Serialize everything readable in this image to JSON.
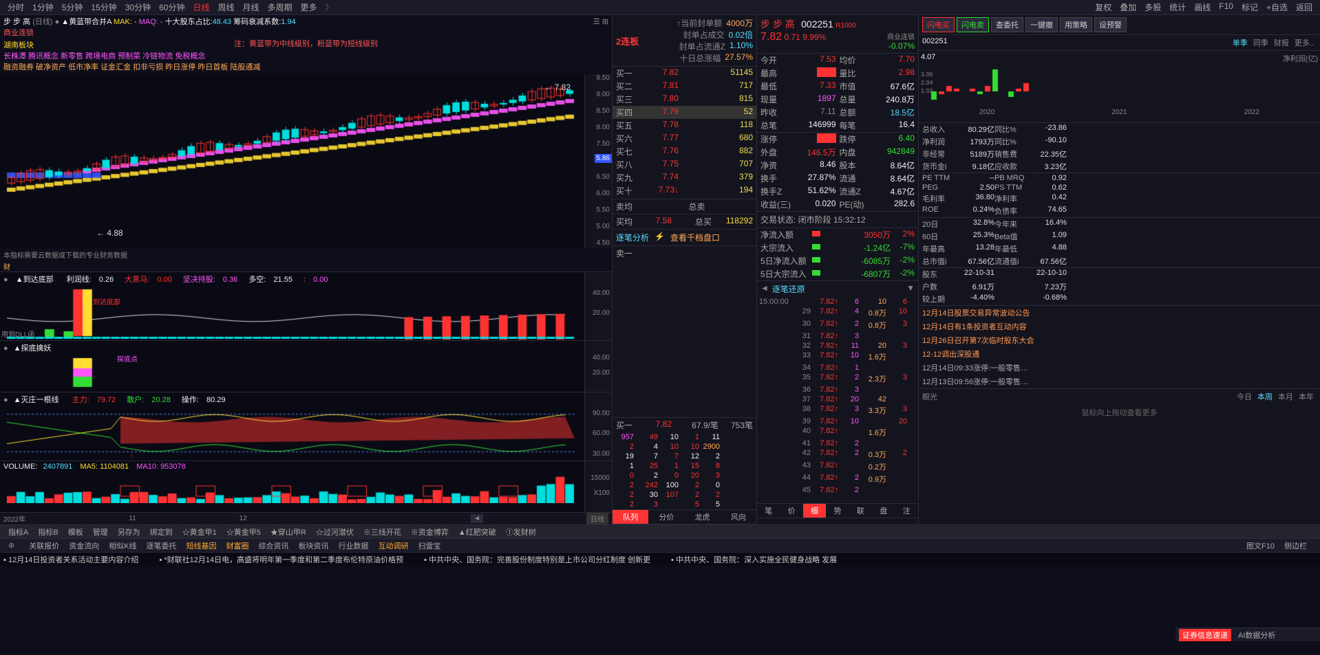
{
  "topbar": {
    "periods": [
      "分时",
      "1分钟",
      "5分钟",
      "15分钟",
      "30分钟",
      "60分钟",
      "日线",
      "周线",
      "月线",
      "多周期",
      "更多"
    ],
    "active_period": "日线",
    "right": [
      "复权",
      "叠加",
      "多股",
      "统计",
      "画线",
      "F10",
      "标记",
      "+自选",
      "返回"
    ]
  },
  "chart_header": {
    "name": "步 步 高",
    "period": "(日线)",
    "indicator": "黄蓝带合并A",
    "mak": "MAK: -",
    "maq": "MAQ: -",
    "top10": "十大股东占比:",
    "top10_val": "48.43",
    "chip": "筹码衰减系数:",
    "chip_val": "1.94",
    "note": "注：黄蓝带为中线级别，粉蓝带为短线级别",
    "tags1": "商业连锁",
    "tags2": "湖南板块",
    "tags3": "长株潭 腾讯概念 新零售 跨境电商 预制菜 冷链物流 免税概念",
    "tags4": "融资融券 破净资产 低市净率 证金汇金 扣非亏损 昨日涨停 昨日首板 陆股通减",
    "price_high": "7.82",
    "price_low": "4.88",
    "price_curr": "5.86"
  },
  "y_axis_main": [
    "9.50",
    "9.00",
    "8.50",
    "8.00",
    "7.50",
    "7.00",
    "6.50",
    "6.00",
    "5.50",
    "5.00",
    "4.50"
  ],
  "sub1": {
    "title": "到达底部",
    "items": [
      {
        "l": "利润线:",
        "v": "0.26",
        "c": "white"
      },
      {
        "l": "大黑马:",
        "v": "0.00",
        "c": "red"
      },
      {
        "l": "坚决持股:",
        "v": "0.36",
        "c": "magenta"
      },
      {
        "l": "多空:",
        "v": "21.55",
        "c": "white"
      },
      {
        "l": ":",
        "v": "0.00",
        "c": "magenta"
      }
    ],
    "y": [
      "40.00",
      "20.00"
    ],
    "note": "本指标需要云数据或下载的专业财务数据",
    "bottom_note": "到达底部",
    "dll": "用到DLL函"
  },
  "sub2": {
    "title": "探底擒妖",
    "note": "探底点",
    "y": [
      "40.00",
      "20.00"
    ]
  },
  "sub3": {
    "title": "灭庄一根线",
    "items": [
      {
        "l": "主力:",
        "v": "79.72",
        "c": "red"
      },
      {
        "l": "散户:",
        "v": "20.28",
        "c": "green"
      },
      {
        "l": "操作:",
        "v": "80.29",
        "c": "white"
      }
    ],
    "y": [
      "90.00",
      "60.00",
      "30.00"
    ]
  },
  "sub4": {
    "title": "VOLUME:",
    "vol": "2407891",
    "ma5": "MA5: 1104081",
    "ma10": "MA10: 953078",
    "y": [
      "15000",
      "X100"
    ],
    "time_labels": [
      "2022年",
      "11",
      "12"
    ],
    "btn": "日线"
  },
  "orderbook": {
    "header_red": "2连板",
    "header_rows": [
      {
        "l": "↑当前封单额",
        "v": "4000万",
        "c": "orange"
      },
      {
        "l": "封单占成交",
        "v": "0.02倍",
        "c": "cyan"
      },
      {
        "l": "封单占流通Z",
        "v": "1.10%",
        "c": "cyan"
      },
      {
        "l": "十日总涨幅",
        "v": "27.57%",
        "c": "orange"
      }
    ],
    "buy_rows": [
      {
        "n": "买一",
        "p": "7.82",
        "q": "51145"
      },
      {
        "n": "买二",
        "p": "7.81",
        "q": "717"
      },
      {
        "n": "买三",
        "p": "7.80",
        "q": "815"
      },
      {
        "n": "买四",
        "p": "7.79",
        "q": "52",
        "sel": true
      },
      {
        "n": "买五",
        "p": "7.78",
        "q": "118"
      },
      {
        "n": "买六",
        "p": "7.77",
        "q": "680"
      },
      {
        "n": "买七",
        "p": "7.76",
        "q": "882"
      },
      {
        "n": "买八",
        "p": "7.75",
        "q": "707"
      },
      {
        "n": "买九",
        "p": "7.74",
        "q": "379"
      },
      {
        "n": "买十",
        "p": "7.73",
        "q": "194",
        "flag": "↓"
      }
    ],
    "avg": {
      "sell_l": "卖均",
      "buy_l": "买均",
      "buy_p": "7.58",
      "total_sell": "总卖",
      "total_buy": "总买",
      "total_buy_v": "118292"
    },
    "tick_title": "逐笔分析",
    "tick_sub": "查看千档盘口",
    "sell1": "卖一",
    "buy1_row": {
      "n": "买一",
      "p": "7.82",
      "avg": "67.9/笔",
      "cnt": "753笔"
    },
    "tick_grid": [
      [
        "957",
        "49",
        "10",
        "1",
        "11"
      ],
      [
        "2",
        "4",
        "10",
        "10",
        "2900"
      ],
      [
        "19",
        "7",
        "7",
        "12",
        "2"
      ],
      [
        "1",
        "25",
        "1",
        "15",
        "8"
      ],
      [
        "0",
        "2",
        "0",
        "20",
        "3"
      ],
      [
        "2",
        "242",
        "100",
        "2",
        "0"
      ],
      [
        "2",
        "30",
        "107",
        "2",
        "2"
      ],
      [
        "2",
        "3",
        "",
        "5",
        "5"
      ]
    ],
    "bottom_tabs": [
      "队列",
      "分价",
      "龙虎",
      "风向"
    ]
  },
  "quote": {
    "name": "步 步 高",
    "code": "002251",
    "flag": "R1000",
    "sector": "商业连锁",
    "sector_chg": "-0.07%",
    "price": "7.82",
    "chg": "0.71",
    "pct": "9.99%",
    "rows": [
      {
        "k1": "今开",
        "v1": "7.53",
        "c1": "red",
        "k2": "均价",
        "v2": "7.70",
        "c2": "red"
      },
      {
        "k1": "最高",
        "v1": "7.82",
        "c1": "red",
        "k2": "量比",
        "v2": "2.98",
        "c2": "red",
        "box1": true
      },
      {
        "k1": "最低",
        "v1": "7.33",
        "c1": "red",
        "k2": "市值",
        "v2": "67.6亿",
        "c2": "white"
      },
      {
        "k1": "现量",
        "v1": "1897",
        "c1": "magenta",
        "k2": "总量",
        "v2": "240.8万",
        "c2": "white"
      },
      {
        "k1": "昨收",
        "v1": "7.11",
        "c1": "gray",
        "k2": "总额",
        "v2": "18.5亿",
        "c2": "cyan"
      },
      {
        "k1": "总笔",
        "v1": "146999",
        "c1": "white",
        "k2": "每笔",
        "v2": "16.4",
        "c2": "white"
      }
    ],
    "rows2": [
      {
        "k1": "涨停",
        "v1": "7.82",
        "c1": "red",
        "k2": "跌停",
        "v2": "6.40",
        "c2": "green",
        "box1": true
      },
      {
        "k1": "外盘",
        "v1": "146.5万",
        "c1": "red",
        "k2": "内盘",
        "v2": "942849",
        "c2": "green"
      },
      {
        "k1": "净资",
        "v1": "8.46",
        "c1": "white",
        "k2": "股本",
        "v2": "8.64亿",
        "c2": "white"
      },
      {
        "k1": "换手",
        "v1": "27.87%",
        "c1": "white",
        "k2": "流通",
        "v2": "8.64亿",
        "c2": "white"
      },
      {
        "k1": "换手Z",
        "v1": "51.62%",
        "c1": "white",
        "k2": "流通Z",
        "v2": "4.67亿",
        "c2": "white"
      },
      {
        "k1": "收益(三)",
        "v1": "0.020",
        "c1": "white",
        "k2": "PE(动)",
        "v2": "282.6",
        "c2": "white"
      }
    ],
    "status": "交易状态: 闭市阶段 15:32:12",
    "flow": [
      {
        "k": "净流入额",
        "bar": "red",
        "v": "3050万",
        "p": "2%"
      },
      {
        "k": "大宗流入",
        "bar": "green",
        "v": "-1.24亿",
        "p": "-7%",
        "vc": "green"
      },
      {
        "k": "5日净流入额",
        "bar": "green",
        "v": "-6085万",
        "p": "-2%",
        "vc": "green"
      },
      {
        "k": "5日大宗流入",
        "bar": "green",
        "v": "-6807万",
        "p": "-2%",
        "vc": "green"
      }
    ],
    "tick_replay": "逐笔还原",
    "tick_rows": [
      {
        "t": "15:00:00",
        "p": "7.82",
        "q": "6",
        "e": "10",
        "a": "6"
      },
      {
        "t": "",
        "s": "29",
        "p": "7.82",
        "q": "4",
        "e": "0.8万",
        "a": "10"
      },
      {
        "t": "",
        "s": "30",
        "p": "7.82",
        "q": "2",
        "e": "0.8万",
        "a": "3"
      },
      {
        "t": "",
        "s": "31",
        "p": "7.82",
        "q": "3",
        "e": "",
        "a": ""
      },
      {
        "t": "",
        "s": "32",
        "p": "7.82",
        "q": "11",
        "e": "20",
        "a": "3"
      },
      {
        "t": "",
        "s": "33",
        "p": "7.82",
        "q": "10",
        "e": "1.6万",
        "a": ""
      },
      {
        "t": "",
        "s": "34",
        "p": "7.82",
        "q": "1",
        "e": "",
        "a": ""
      },
      {
        "t": "",
        "s": "35",
        "p": "7.82",
        "q": "2",
        "e": "2.3万",
        "a": "3"
      },
      {
        "t": "",
        "s": "36",
        "p": "7.82",
        "q": "3",
        "e": "",
        "a": ""
      },
      {
        "t": "",
        "s": "37",
        "p": "7.82",
        "q": "20",
        "e": "42",
        "a": ""
      },
      {
        "t": "",
        "s": "38",
        "p": "7.82",
        "q": "3",
        "e": "3.3万",
        "a": "3"
      },
      {
        "t": "",
        "s": "39",
        "p": "7.82",
        "q": "10",
        "e": "",
        "a": "20"
      },
      {
        "t": "",
        "s": "40",
        "p": "7.82",
        "q": "",
        "e": "1.6万",
        "a": ""
      },
      {
        "t": "",
        "s": "41",
        "p": "7.82",
        "q": "2",
        "e": "",
        "a": ""
      },
      {
        "t": "",
        "s": "42",
        "p": "7.82",
        "q": "2",
        "e": "0.3万",
        "a": "2"
      },
      {
        "t": "",
        "s": "43",
        "p": "7.82",
        "q": "",
        "e": "0.2万",
        "a": ""
      },
      {
        "t": "",
        "s": "44",
        "p": "7.82",
        "q": "2",
        "e": "0.9万",
        "a": ""
      },
      {
        "t": "",
        "s": "45",
        "p": "7.82",
        "q": "2",
        "e": "",
        "a": ""
      }
    ],
    "tick_tabs": [
      "笔",
      "价",
      "细",
      "势",
      "联",
      "盘",
      "注"
    ]
  },
  "side": {
    "btns": [
      {
        "t": "闪电买",
        "c": "red"
      },
      {
        "t": "闪电卖",
        "c": "green"
      },
      {
        "t": "查委托",
        "c": ""
      },
      {
        "t": "一键撤",
        "c": ""
      },
      {
        "t": "用策略",
        "c": ""
      },
      {
        "t": "设预警",
        "c": ""
      }
    ],
    "code": "002251",
    "tabs": [
      "单季",
      "同季",
      "财报",
      "更多.."
    ],
    "mini_title": "净利润(亿)",
    "mini_val": "4.07",
    "mini_years": [
      "2020",
      "2021",
      "2022"
    ],
    "mini_bars": [
      {
        "y": "2020",
        "vals": [
          -0.3,
          -0.1,
          0.2,
          0.1
        ],
        "colors": [
          "#33dd33",
          "#ff3333",
          "#ff3333",
          "#ff3333"
        ]
      },
      {
        "y": "2021",
        "vals": [
          0.1,
          -0.1,
          0.2,
          0.8
        ],
        "colors": [
          "#ff3333",
          "#33dd33",
          "#ff3333",
          "#33dd33"
        ]
      },
      {
        "y": "2022",
        "vals": [
          -0.2,
          0.1,
          0.3
        ],
        "colors": [
          "#33dd33",
          "#ff3333",
          "#ff3333"
        ]
      }
    ],
    "fin": [
      {
        "k1": "总收入",
        "v1": "80.29亿",
        "k2": "同比%",
        "v2": "-23.86",
        "c2": "green"
      },
      {
        "k1": "净利润",
        "v1": "1793万",
        "k2": "同比%",
        "v2": "-90.10",
        "c2": "green"
      },
      {
        "k1": "非经常",
        "v1": "5189万",
        "k2": "销售费",
        "v2": "22.35亿"
      },
      {
        "k1": "货币金i",
        "v1": "9.18亿",
        "k2": "应收款",
        "v2": "3.23亿"
      }
    ],
    "fin2": [
      {
        "k1": "PE TTM",
        "v1": "--",
        "k2": "PB MRQ",
        "v2": "0.92"
      },
      {
        "k1": "PEG",
        "v1": "2.50",
        "k2": "PS TTM",
        "v2": "0.62"
      },
      {
        "k1": "毛利率",
        "v1": "36.80",
        "k2": "净利率",
        "v2": "0.42"
      },
      {
        "k1": "ROE",
        "v1": "0.24%",
        "k2": "负债率",
        "v2": "74.65"
      }
    ],
    "fin3": [
      {
        "k1": "20日",
        "v1": "32.8%",
        "c1": "red",
        "k2": "今年来",
        "v2": "16.4%",
        "c2": "red"
      },
      {
        "k1": "60日",
        "v1": "25.3%",
        "c1": "red",
        "k2": "Beta值",
        "v2": "1.09"
      },
      {
        "k1": "年最高",
        "v1": "13.28",
        "k2": "年最低",
        "v2": "4.88"
      },
      {
        "k1": "总市值i",
        "v1": "67.56亿",
        "k2": "流通值i",
        "v2": "67.56亿"
      }
    ],
    "fin4": [
      {
        "k1": "股东",
        "v1": "22-10-31",
        "k2": "",
        "v2": "22-10-10"
      },
      {
        "k1": "户数",
        "v1": "6.91万",
        "k2": "",
        "v2": "7.23万"
      },
      {
        "k1": "较上期",
        "v1": "-4.40%",
        "c1": "green",
        "k2": "",
        "v2": "-0.68%",
        "c2": "green"
      }
    ],
    "news": [
      "12月14日股票交易异常波动公告",
      "12月14日有1条投资者互动内容",
      "12月26日召开第7次临时股东大会",
      "12-12调出深股通",
      "12月14日09:33涨停:一般零售…",
      "12月13日09:56涨停:一般零售…"
    ],
    "eye": "眼光",
    "eye_tabs": [
      "今日",
      "本周",
      "本月",
      "本年"
    ],
    "drag_hint": "鼠标向上拖动查看更多"
  },
  "bottom1": {
    "items": [
      "指标A",
      "指标B",
      "模板",
      "管理",
      "另存为",
      "绑定到",
      "☆黄金甲1",
      "☆黄金甲5",
      "★穿山甲R",
      "☆过河潜伏",
      "※三线开花",
      "※资金博弈",
      "▲红肥突破",
      "①发财树"
    ]
  },
  "bottom2": {
    "items": [
      "关联报价",
      "资金流向",
      "相似K线",
      "逐笔委托",
      "短线基因",
      "财富圈",
      "综合资讯",
      "板块资讯",
      "行业数据",
      "互动调研",
      "扫雷宝"
    ],
    "highlight": [
      "短线基因",
      "财富圈",
      "互动调研"
    ],
    "right": [
      "图文F10",
      "侧边栏"
    ]
  },
  "bottom3": {
    "right_items": [
      "证券信息速递",
      "AI数据分析"
    ]
  },
  "ticker": {
    "items": [
      "12月14日投资者关系活动主要内容介绍",
      "*财联社12月14日电，高盛将明年第一季度和第二季度布伦特原油价格预",
      "中共中央、国务院：完善股份制度特别是上市公司分红制度 创新更",
      "中共中央、国务院：深入实施全民健身战略 发展"
    ]
  },
  "colors": {
    "bg": "#0e0e1a",
    "panel": "#14141e",
    "border": "#2a2a3a",
    "red": "#ff3333",
    "green": "#33dd33",
    "yellow": "#ffdd33",
    "cyan": "#55ddff",
    "magenta": "#ff55ff",
    "orange": "#ffaa55"
  },
  "candles": {
    "count": 60,
    "low_price": 4.5,
    "high_price": 9.5
  }
}
